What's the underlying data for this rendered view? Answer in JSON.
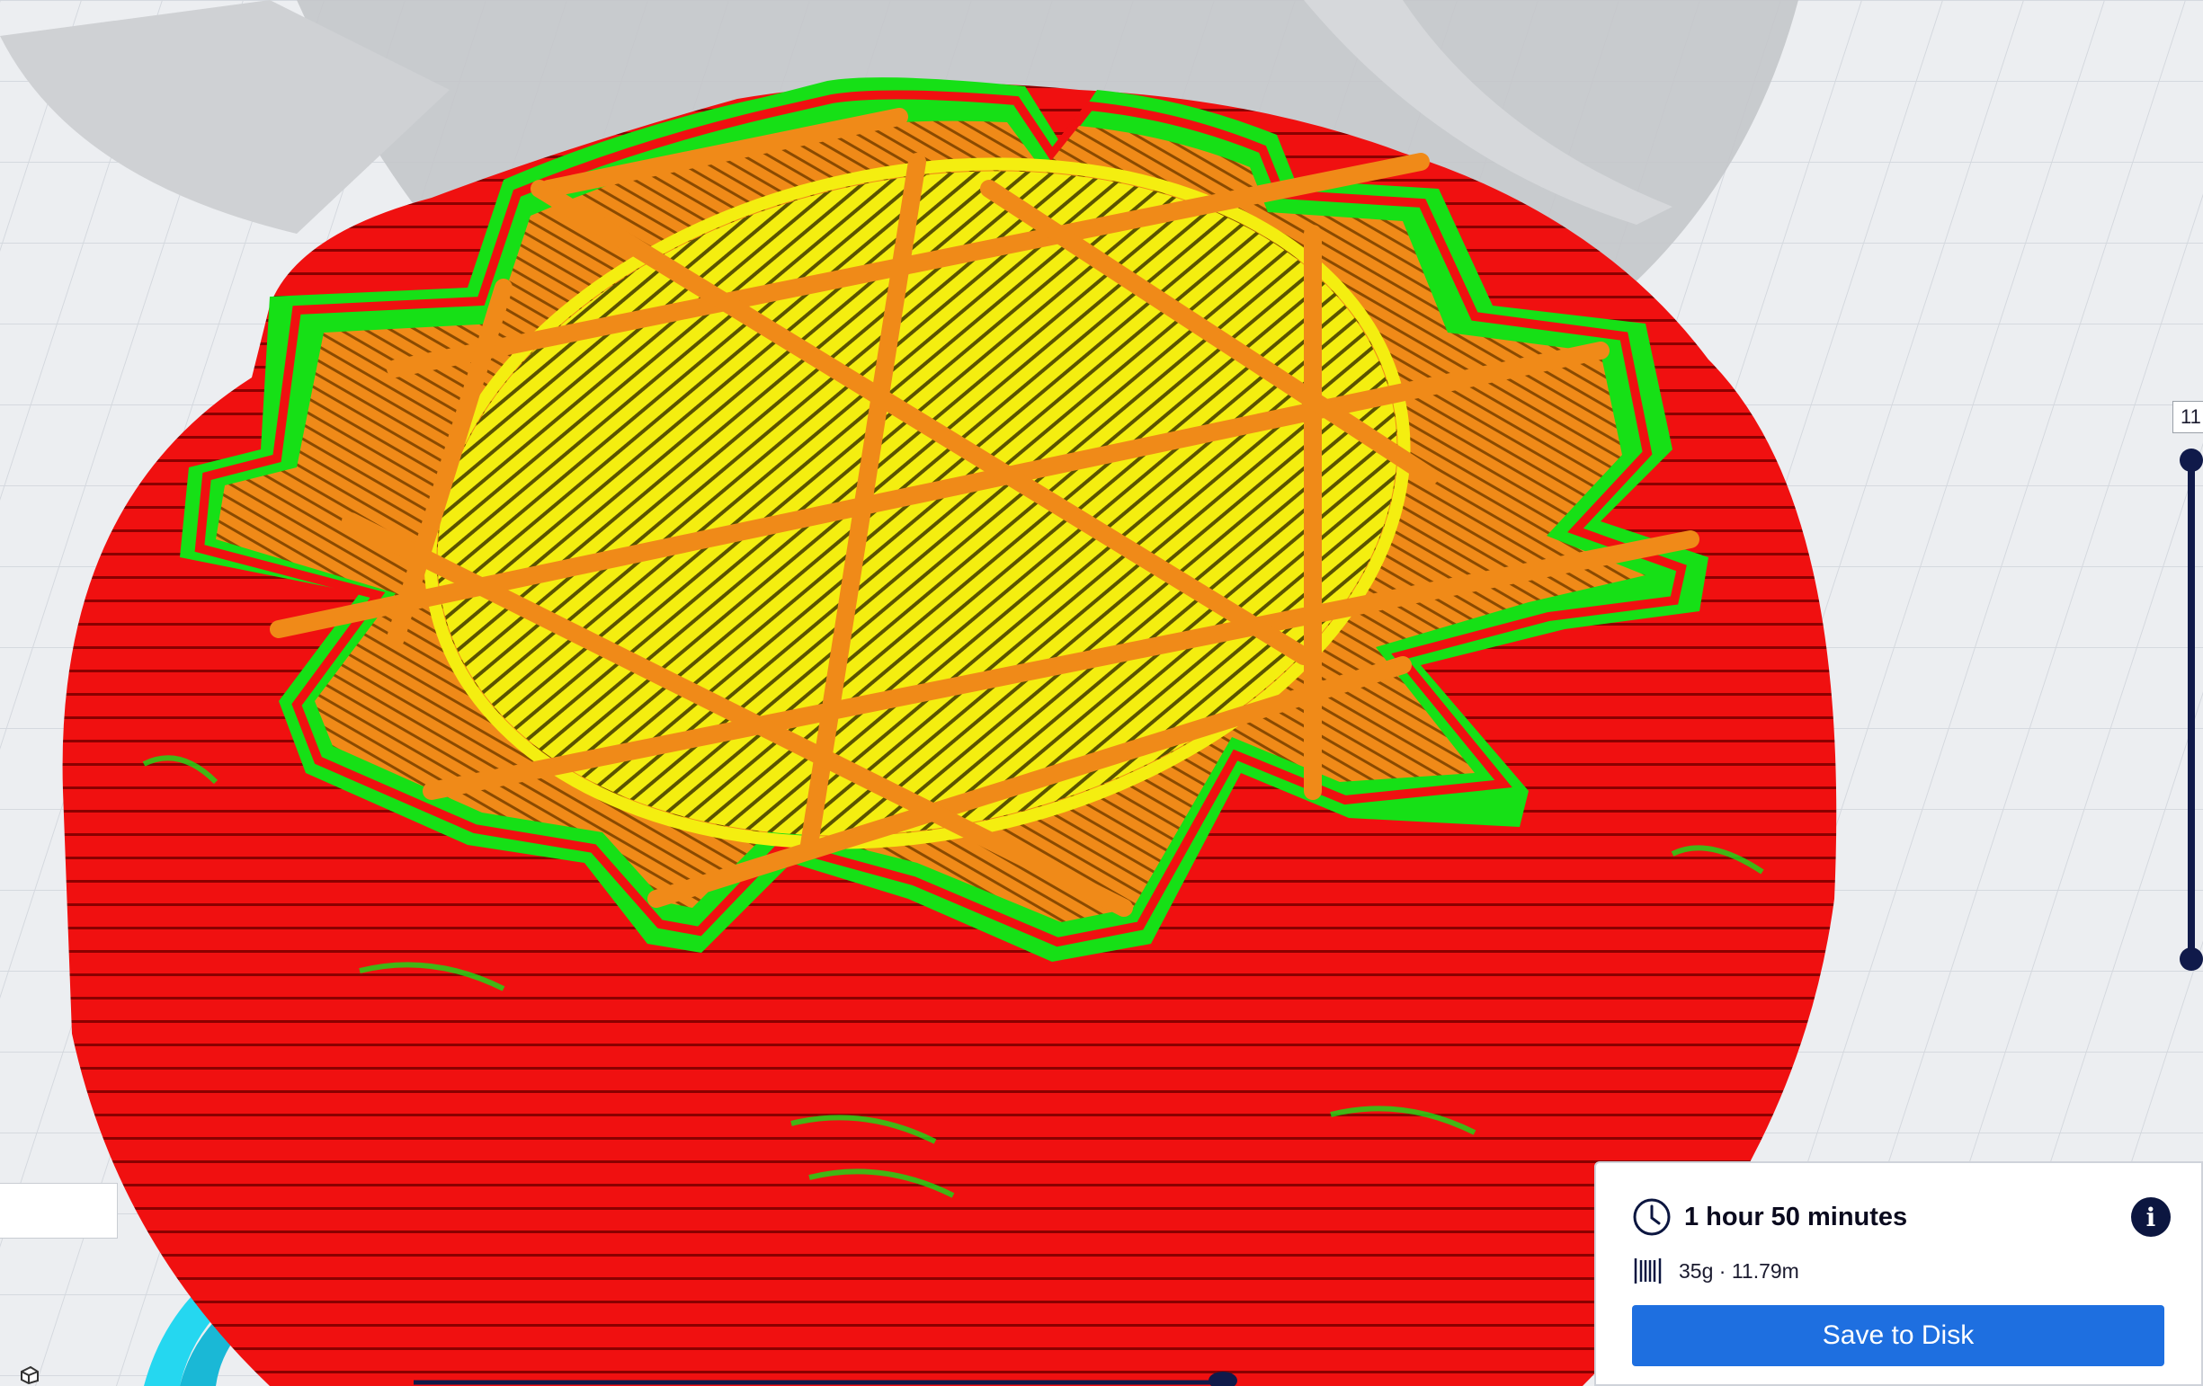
{
  "viewport": {
    "colors": {
      "background": "#eceef1",
      "grid": "#d4d8de",
      "outer_wall": "#f01010",
      "inner_wall": "#16e016",
      "infill": "#f08a18",
      "skin": "#f4ee10",
      "support": "#25d7f0",
      "shadow": "#b4b6ba"
    }
  },
  "layer_view": {
    "layer_number": "11",
    "slider_color": "#101a4a"
  },
  "print_summary": {
    "time": "1 hour 50 minutes",
    "material": "35g · 11.79m",
    "info_symbol": "i",
    "save_label": "Save to Disk",
    "accent": "#1e6fe0"
  },
  "icons": {
    "clock": "clock-icon",
    "info": "info-icon",
    "spool": "spool-icon",
    "cube": "cube-icon"
  }
}
